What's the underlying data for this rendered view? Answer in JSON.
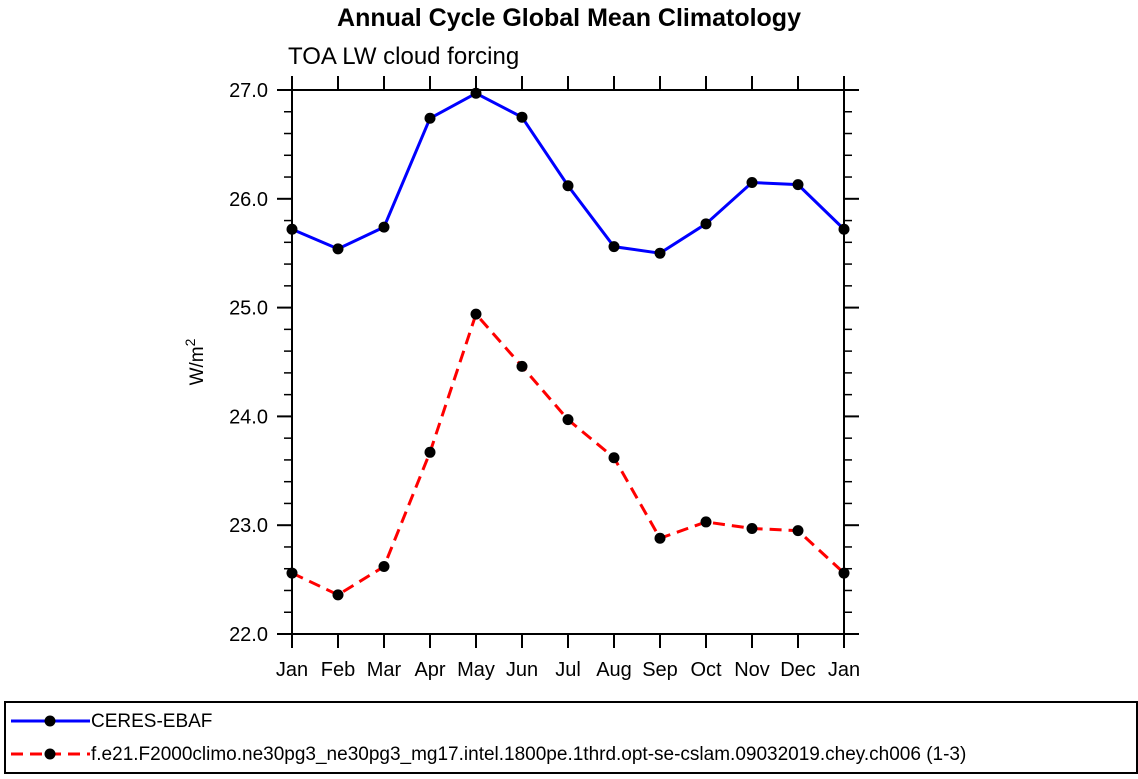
{
  "chart": {
    "title": "Annual Cycle Global Mean Climatology",
    "subtitle": "TOA LW cloud forcing"
  },
  "legend": {
    "items": [
      {
        "label": "CERES-EBAF",
        "color": "#0000ff",
        "line_style": "solid",
        "marker": "black-dot"
      },
      {
        "label": "f.e21.F2000climo.ne30pg3_ne30pg3_mg17.intel.1800pe.1thrd.opt-se-cslam.09032019.chey.ch006 (1-3)",
        "color": "#ff0000",
        "line_style": "dashed",
        "marker": "black-dot"
      }
    ]
  },
  "chart_data": {
    "type": "line",
    "title": "Annual Cycle Global Mean Climatology",
    "subtitle": "TOA LW cloud forcing",
    "ylabel_base": "W/m",
    "ylabel_sup": "2",
    "xlabel": "",
    "categories": [
      "Jan",
      "Feb",
      "Mar",
      "Apr",
      "May",
      "Jun",
      "Jul",
      "Aug",
      "Sep",
      "Oct",
      "Nov",
      "Dec",
      "Jan"
    ],
    "series": [
      {
        "name": "CERES-EBAF",
        "color": "#0000ff",
        "line_style": "solid",
        "values": [
          25.72,
          25.54,
          25.74,
          26.74,
          26.97,
          26.75,
          26.12,
          25.56,
          25.5,
          25.77,
          26.15,
          26.13,
          25.72
        ]
      },
      {
        "name": "f.e21.F2000climo.ne30pg3_ne30pg3_mg17.intel.1800pe.1thrd.opt-se-cslam.09032019.chey.ch006 (1-3)",
        "color": "#ff0000",
        "line_style": "dashed",
        "values": [
          22.56,
          22.36,
          22.62,
          23.67,
          24.94,
          24.46,
          23.97,
          23.62,
          22.88,
          23.03,
          22.97,
          22.95,
          22.56
        ]
      }
    ],
    "ylim": [
      22.0,
      27.0
    ],
    "y_major_step": 1.0,
    "y_minor_step": 0.2,
    "marker_color": "#000000",
    "axis_color": "#000000",
    "grid": false,
    "legend_position": "bottom"
  }
}
